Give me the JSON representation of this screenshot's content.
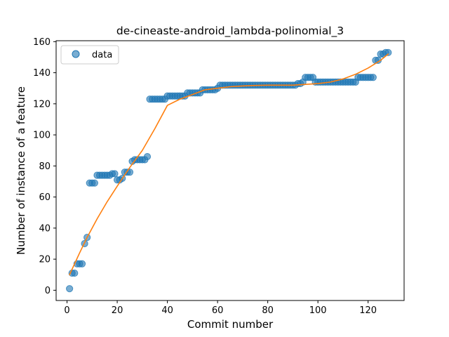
{
  "chart_data": {
    "type": "scatter",
    "title": "de-cineaste-android_lambda-polinomial_3",
    "xlabel": "Commit number",
    "ylabel": "Number of instance of a feature",
    "xlim": [
      -4.35,
      134.35
    ],
    "ylim": [
      -6.6,
      160.6
    ],
    "xticks": [
      0,
      20,
      40,
      60,
      80,
      100,
      120
    ],
    "yticks": [
      0,
      20,
      40,
      60,
      80,
      100,
      120,
      140,
      160
    ],
    "grid": false,
    "legend_position": "upper left",
    "series": [
      {
        "name": "data",
        "kind": "scatter",
        "color": "#1f77b4",
        "x": [
          1,
          2,
          3,
          4,
          5,
          6,
          7,
          8,
          9,
          10,
          11,
          12,
          13,
          14,
          15,
          16,
          17,
          18,
          19,
          20,
          21,
          22,
          23,
          24,
          25,
          26,
          27,
          28,
          29,
          30,
          31,
          32,
          33,
          34,
          35,
          36,
          37,
          38,
          39,
          40,
          41,
          42,
          43,
          44,
          45,
          46,
          47,
          48,
          49,
          50,
          51,
          52,
          53,
          54,
          55,
          56,
          57,
          58,
          59,
          60,
          61,
          62,
          63,
          64,
          65,
          66,
          67,
          68,
          69,
          70,
          71,
          72,
          73,
          74,
          75,
          76,
          77,
          78,
          79,
          80,
          81,
          82,
          83,
          84,
          85,
          86,
          87,
          88,
          89,
          90,
          91,
          92,
          93,
          94,
          95,
          96,
          97,
          98,
          99,
          100,
          101,
          102,
          103,
          104,
          105,
          106,
          107,
          108,
          109,
          110,
          111,
          112,
          113,
          114,
          115,
          116,
          117,
          118,
          119,
          120,
          121,
          122,
          123,
          124,
          125,
          126,
          127,
          128
        ],
        "y": [
          1,
          11,
          11,
          17,
          17,
          17,
          30,
          34,
          69,
          69,
          69,
          74,
          74,
          74,
          74,
          74,
          74,
          75,
          75,
          71,
          71,
          72,
          76,
          76,
          76,
          83,
          84,
          84,
          84,
          84,
          84,
          86,
          123,
          123,
          123,
          123,
          123,
          123,
          123,
          125,
          125,
          125,
          125,
          125,
          125,
          125,
          125,
          127,
          127,
          127,
          127,
          127,
          127,
          129,
          129,
          129,
          129,
          129,
          129,
          130,
          132,
          132,
          132,
          132,
          132,
          132,
          132,
          132,
          132,
          132,
          132,
          132,
          132,
          132,
          132,
          132,
          132,
          132,
          132,
          132,
          132,
          132,
          132,
          132,
          132,
          132,
          132,
          132,
          132,
          132,
          132,
          133,
          133,
          134,
          137,
          137,
          137,
          137,
          134,
          134,
          134,
          134,
          134,
          134,
          134,
          134,
          134,
          134,
          134,
          134,
          134,
          134,
          134,
          134,
          134,
          137,
          137,
          137,
          137,
          137,
          137,
          137,
          148,
          148,
          152,
          152,
          153,
          153
        ]
      },
      {
        "name": "",
        "kind": "line",
        "color": "#ff7f0e",
        "x": [
          1,
          3,
          5,
          8,
          12,
          16,
          20,
          25,
          30,
          35,
          40,
          45,
          50,
          55,
          60,
          65,
          70,
          75,
          80,
          85,
          90,
          95,
          100,
          105,
          110,
          115,
          120,
          125,
          128
        ],
        "y": [
          10,
          17,
          24,
          34,
          46,
          57,
          67,
          79,
          90,
          104,
          119,
          123,
          126,
          129,
          130,
          131,
          131.5,
          131.8,
          132,
          132,
          132,
          132.5,
          133,
          134,
          136,
          139,
          143,
          148,
          152
        ]
      }
    ]
  }
}
